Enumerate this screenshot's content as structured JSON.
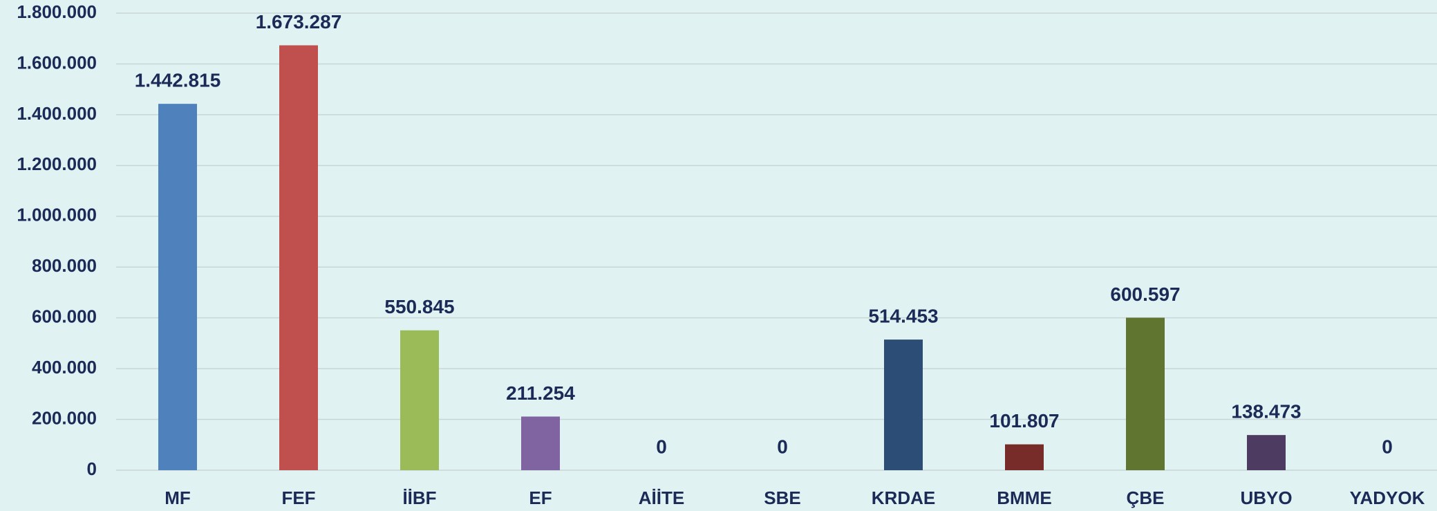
{
  "chart_data": {
    "type": "bar",
    "categories": [
      "MF",
      "FEF",
      "İİBF",
      "EF",
      "AİİTE",
      "SBE",
      "KRDAE",
      "BMME",
      "ÇBE",
      "UBYO",
      "YADYOK"
    ],
    "values": [
      1442815,
      1673287,
      550845,
      211254,
      0,
      0,
      514453,
      101807,
      600597,
      138473,
      0
    ],
    "value_labels": [
      "1.442.815",
      "1.673.287",
      "550.845",
      "211.254",
      "0",
      "0",
      "514.453",
      "101.807",
      "600.597",
      "138.473",
      "0"
    ],
    "colors": [
      "#4f81bd",
      "#c0504d",
      "#9bbb59",
      "#8064a2",
      "#4bacc6",
      "#f79646",
      "#2c4d75",
      "#772c2a",
      "#5f7530",
      "#4d3b62",
      "#2c4d75"
    ],
    "ylim": [
      0,
      1800000
    ],
    "yticks": [
      0,
      {
        "value": 200000,
        "label": "200.000"
      },
      {
        "value": 400000,
        "label": "400.000"
      },
      {
        "value": 600000,
        "label": "600.000"
      },
      {
        "value": 800000,
        "label": "800.000"
      },
      {
        "value": 1000000,
        "label": "1.000.000"
      },
      {
        "value": 1200000,
        "label": "1.200.000"
      },
      {
        "value": 1400000,
        "label": "1.400.000"
      },
      {
        "value": 1600000,
        "label": "1.600.000"
      },
      {
        "value": 1800000,
        "label": "1.800.000"
      }
    ],
    "grid": true
  }
}
